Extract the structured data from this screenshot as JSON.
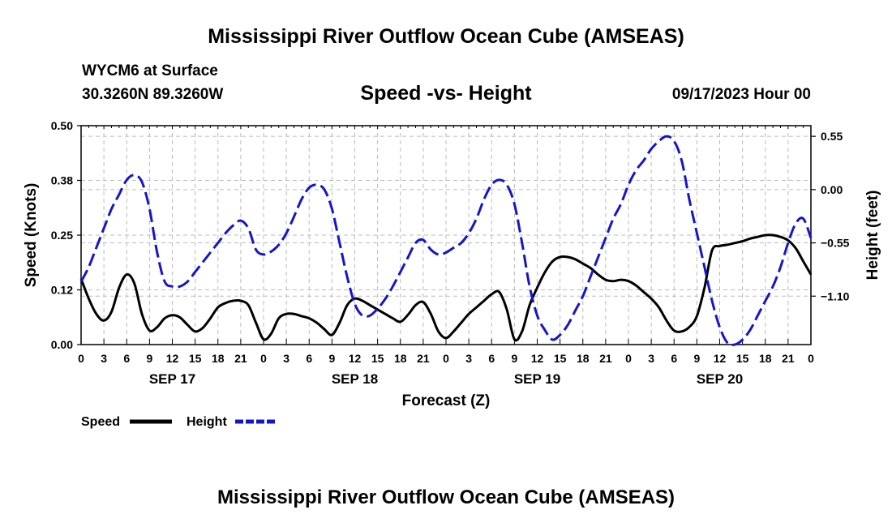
{
  "page": {
    "title": "Mississippi River Outflow Ocean Cube (AMSEAS)",
    "station": "WYCM6 at Surface",
    "coords": "30.3260N  89.3260W",
    "datetime": "09/17/2023 Hour 00",
    "footer_title": "Mississippi River Outflow Ocean Cube (AMSEAS)"
  },
  "chart_data": {
    "type": "line",
    "title": "Speed -vs- Height",
    "xlabel": "Forecast (Z)",
    "ylabel_left": "Speed (Knots)",
    "ylabel_right": "Height (feet)",
    "x_hours_range": [
      0,
      96
    ],
    "x_tick_labels": [
      "0",
      "3",
      "6",
      "9",
      "12",
      "15",
      "18",
      "21",
      "0",
      "3",
      "6",
      "9",
      "12",
      "15",
      "18",
      "21",
      "0",
      "3",
      "6",
      "9",
      "12",
      "15",
      "18",
      "21",
      "0",
      "3",
      "6",
      "9",
      "12",
      "15",
      "18",
      "21",
      "0"
    ],
    "day_labels": [
      {
        "hour": 12,
        "label": "SEP 17"
      },
      {
        "hour": 36,
        "label": "SEP 18"
      },
      {
        "hour": 60,
        "label": "SEP 19"
      },
      {
        "hour": 84,
        "label": "SEP 20"
      }
    ],
    "left_axis": {
      "range": [
        0,
        0.5
      ],
      "ticks": [
        0,
        0.125,
        0.25,
        0.375,
        0.5
      ],
      "tick_labels": [
        "0.00",
        "0.12",
        "0.25",
        "0.38",
        "0.50"
      ]
    },
    "right_axis": {
      "range": [
        -1.6,
        0.66
      ],
      "ticks": [
        0.55,
        0.0,
        -0.55,
        -1.1
      ],
      "tick_labels": [
        "0.55",
        "0.00",
        "−0.55",
        "−1.10"
      ]
    },
    "grid": true,
    "legend_position": "bottom-left",
    "series": [
      {
        "name": "Speed",
        "axis": "left",
        "color": "#000000",
        "dash": "solid",
        "points": [
          [
            0,
            0.15
          ],
          [
            1,
            0.105
          ],
          [
            2,
            0.07
          ],
          [
            3,
            0.055
          ],
          [
            4,
            0.075
          ],
          [
            5,
            0.13
          ],
          [
            6,
            0.16
          ],
          [
            7,
            0.14
          ],
          [
            8,
            0.07
          ],
          [
            9,
            0.032
          ],
          [
            10,
            0.04
          ],
          [
            11,
            0.06
          ],
          [
            12,
            0.067
          ],
          [
            13,
            0.062
          ],
          [
            14,
            0.045
          ],
          [
            15,
            0.03
          ],
          [
            16,
            0.038
          ],
          [
            17,
            0.06
          ],
          [
            18,
            0.085
          ],
          [
            19,
            0.095
          ],
          [
            20,
            0.1
          ],
          [
            21,
            0.1
          ],
          [
            22,
            0.09
          ],
          [
            23,
            0.05
          ],
          [
            24,
            0.012
          ],
          [
            25,
            0.025
          ],
          [
            26,
            0.06
          ],
          [
            27,
            0.07
          ],
          [
            28,
            0.07
          ],
          [
            29,
            0.065
          ],
          [
            30,
            0.06
          ],
          [
            31,
            0.05
          ],
          [
            32,
            0.035
          ],
          [
            33,
            0.022
          ],
          [
            34,
            0.05
          ],
          [
            35,
            0.09
          ],
          [
            36,
            0.105
          ],
          [
            37,
            0.1
          ],
          [
            38,
            0.09
          ],
          [
            39,
            0.08
          ],
          [
            40,
            0.07
          ],
          [
            41,
            0.06
          ],
          [
            42,
            0.052
          ],
          [
            43,
            0.068
          ],
          [
            44,
            0.09
          ],
          [
            45,
            0.097
          ],
          [
            46,
            0.07
          ],
          [
            47,
            0.03
          ],
          [
            48,
            0.015
          ],
          [
            49,
            0.03
          ],
          [
            50,
            0.05
          ],
          [
            51,
            0.07
          ],
          [
            52,
            0.085
          ],
          [
            53,
            0.1
          ],
          [
            54,
            0.115
          ],
          [
            55,
            0.12
          ],
          [
            56,
            0.08
          ],
          [
            57,
            0.012
          ],
          [
            58,
            0.03
          ],
          [
            59,
            0.09
          ],
          [
            60,
            0.13
          ],
          [
            61,
            0.165
          ],
          [
            62,
            0.19
          ],
          [
            63,
            0.2
          ],
          [
            64,
            0.2
          ],
          [
            65,
            0.195
          ],
          [
            66,
            0.185
          ],
          [
            67,
            0.175
          ],
          [
            68,
            0.16
          ],
          [
            69,
            0.148
          ],
          [
            70,
            0.145
          ],
          [
            71,
            0.148
          ],
          [
            72,
            0.145
          ],
          [
            73,
            0.135
          ],
          [
            74,
            0.12
          ],
          [
            75,
            0.105
          ],
          [
            76,
            0.085
          ],
          [
            77,
            0.055
          ],
          [
            78,
            0.032
          ],
          [
            79,
            0.03
          ],
          [
            80,
            0.04
          ],
          [
            81,
            0.065
          ],
          [
            82,
            0.13
          ],
          [
            83,
            0.215
          ],
          [
            84,
            0.225
          ],
          [
            85,
            0.228
          ],
          [
            86,
            0.232
          ],
          [
            87,
            0.236
          ],
          [
            88,
            0.242
          ],
          [
            89,
            0.246
          ],
          [
            90,
            0.25
          ],
          [
            91,
            0.25
          ],
          [
            92,
            0.246
          ],
          [
            93,
            0.238
          ],
          [
            94,
            0.22
          ],
          [
            95,
            0.19
          ],
          [
            96,
            0.16
          ]
        ]
      },
      {
        "name": "Height",
        "axis": "right",
        "color": "#1515cc",
        "dash": "dashed",
        "points": [
          [
            0,
            -0.95
          ],
          [
            1,
            -0.8
          ],
          [
            2,
            -0.6
          ],
          [
            3,
            -0.4
          ],
          [
            4,
            -0.2
          ],
          [
            5,
            -0.05
          ],
          [
            6,
            0.1
          ],
          [
            7,
            0.15
          ],
          [
            8,
            0.08
          ],
          [
            9,
            -0.2
          ],
          [
            10,
            -0.65
          ],
          [
            11,
            -0.95
          ],
          [
            12,
            -1.0
          ],
          [
            13,
            -1.0
          ],
          [
            14,
            -0.95
          ],
          [
            15,
            -0.85
          ],
          [
            16,
            -0.75
          ],
          [
            17,
            -0.65
          ],
          [
            18,
            -0.55
          ],
          [
            19,
            -0.45
          ],
          [
            20,
            -0.37
          ],
          [
            21,
            -0.32
          ],
          [
            22,
            -0.4
          ],
          [
            23,
            -0.62
          ],
          [
            24,
            -0.67
          ],
          [
            25,
            -0.64
          ],
          [
            26,
            -0.57
          ],
          [
            27,
            -0.45
          ],
          [
            28,
            -0.28
          ],
          [
            29,
            -0.1
          ],
          [
            30,
            0.02
          ],
          [
            31,
            0.05
          ],
          [
            32,
            0.0
          ],
          [
            33,
            -0.2
          ],
          [
            34,
            -0.55
          ],
          [
            35,
            -0.9
          ],
          [
            36,
            -1.18
          ],
          [
            37,
            -1.3
          ],
          [
            38,
            -1.3
          ],
          [
            39,
            -1.23
          ],
          [
            40,
            -1.13
          ],
          [
            41,
            -1.0
          ],
          [
            42,
            -0.85
          ],
          [
            43,
            -0.7
          ],
          [
            44,
            -0.55
          ],
          [
            45,
            -0.52
          ],
          [
            46,
            -0.62
          ],
          [
            47,
            -0.67
          ],
          [
            48,
            -0.65
          ],
          [
            49,
            -0.6
          ],
          [
            50,
            -0.55
          ],
          [
            51,
            -0.45
          ],
          [
            52,
            -0.3
          ],
          [
            53,
            -0.1
          ],
          [
            54,
            0.05
          ],
          [
            55,
            0.1
          ],
          [
            56,
            0.05
          ],
          [
            57,
            -0.15
          ],
          [
            58,
            -0.55
          ],
          [
            59,
            -1.0
          ],
          [
            60,
            -1.3
          ],
          [
            61,
            -1.45
          ],
          [
            62,
            -1.55
          ],
          [
            63,
            -1.5
          ],
          [
            64,
            -1.4
          ],
          [
            65,
            -1.25
          ],
          [
            66,
            -1.1
          ],
          [
            67,
            -0.9
          ],
          [
            68,
            -0.7
          ],
          [
            69,
            -0.5
          ],
          [
            70,
            -0.3
          ],
          [
            71,
            -0.15
          ],
          [
            72,
            0.05
          ],
          [
            73,
            0.2
          ],
          [
            74,
            0.3
          ],
          [
            75,
            0.42
          ],
          [
            76,
            0.5
          ],
          [
            77,
            0.55
          ],
          [
            78,
            0.5
          ],
          [
            79,
            0.3
          ],
          [
            80,
            -0.1
          ],
          [
            81,
            -0.45
          ],
          [
            82,
            -0.8
          ],
          [
            83,
            -1.15
          ],
          [
            84,
            -1.42
          ],
          [
            85,
            -1.58
          ],
          [
            86,
            -1.6
          ],
          [
            87,
            -1.55
          ],
          [
            88,
            -1.45
          ],
          [
            89,
            -1.3
          ],
          [
            90,
            -1.15
          ],
          [
            91,
            -1.0
          ],
          [
            92,
            -0.8
          ],
          [
            93,
            -0.55
          ],
          [
            94,
            -0.35
          ],
          [
            95,
            -0.3
          ],
          [
            96,
            -0.5
          ]
        ]
      }
    ],
    "legend": [
      {
        "label": "Speed",
        "color": "#000000",
        "dash": "solid"
      },
      {
        "label": "Height",
        "color": "#1515cc",
        "dash": "dashed"
      }
    ]
  }
}
